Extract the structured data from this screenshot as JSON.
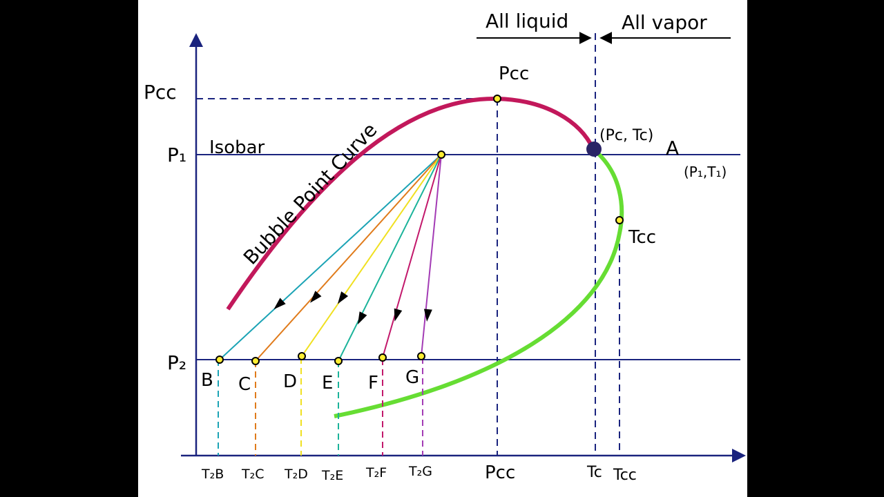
{
  "header": {
    "all_liquid": "All liquid",
    "all_vapor": "All vapor"
  },
  "axes": {
    "y_pcc": "Pcc",
    "y_p1": "P₁",
    "y_p2": "P₂",
    "x_pcc": "Pcc",
    "x_tc": "Tc",
    "x_tcc": "Tcc"
  },
  "curve": {
    "bubble_point_label": "Bubble Point Curve",
    "isobar_label": "Isobar",
    "pcc_point_label": "Pcc",
    "critical_point_label": "(Pc, Tc)",
    "tcc_point_label": "Tcc",
    "point_a_label": "A",
    "point_a_coords": "(P₁,T₁)"
  },
  "points": [
    {
      "label": "B",
      "temp": "T₂B",
      "color": "#1ba3b5"
    },
    {
      "label": "C",
      "temp": "T₂C",
      "color": "#e07b1b"
    },
    {
      "label": "D",
      "temp": "T₂D",
      "color": "#f0e020"
    },
    {
      "label": "E",
      "temp": "T₂E",
      "color": "#1bb39a"
    },
    {
      "label": "F",
      "temp": "T₂F",
      "color": "#c2186b"
    },
    {
      "label": "G",
      "temp": "T₂G",
      "color": "#a33bb5"
    }
  ],
  "colors": {
    "axis": "#1a237e",
    "bubble_curve": "#c2185b",
    "dew_curve": "#66dd33",
    "marker_fill": "#ffee33",
    "critical_point": "#2a2466"
  }
}
